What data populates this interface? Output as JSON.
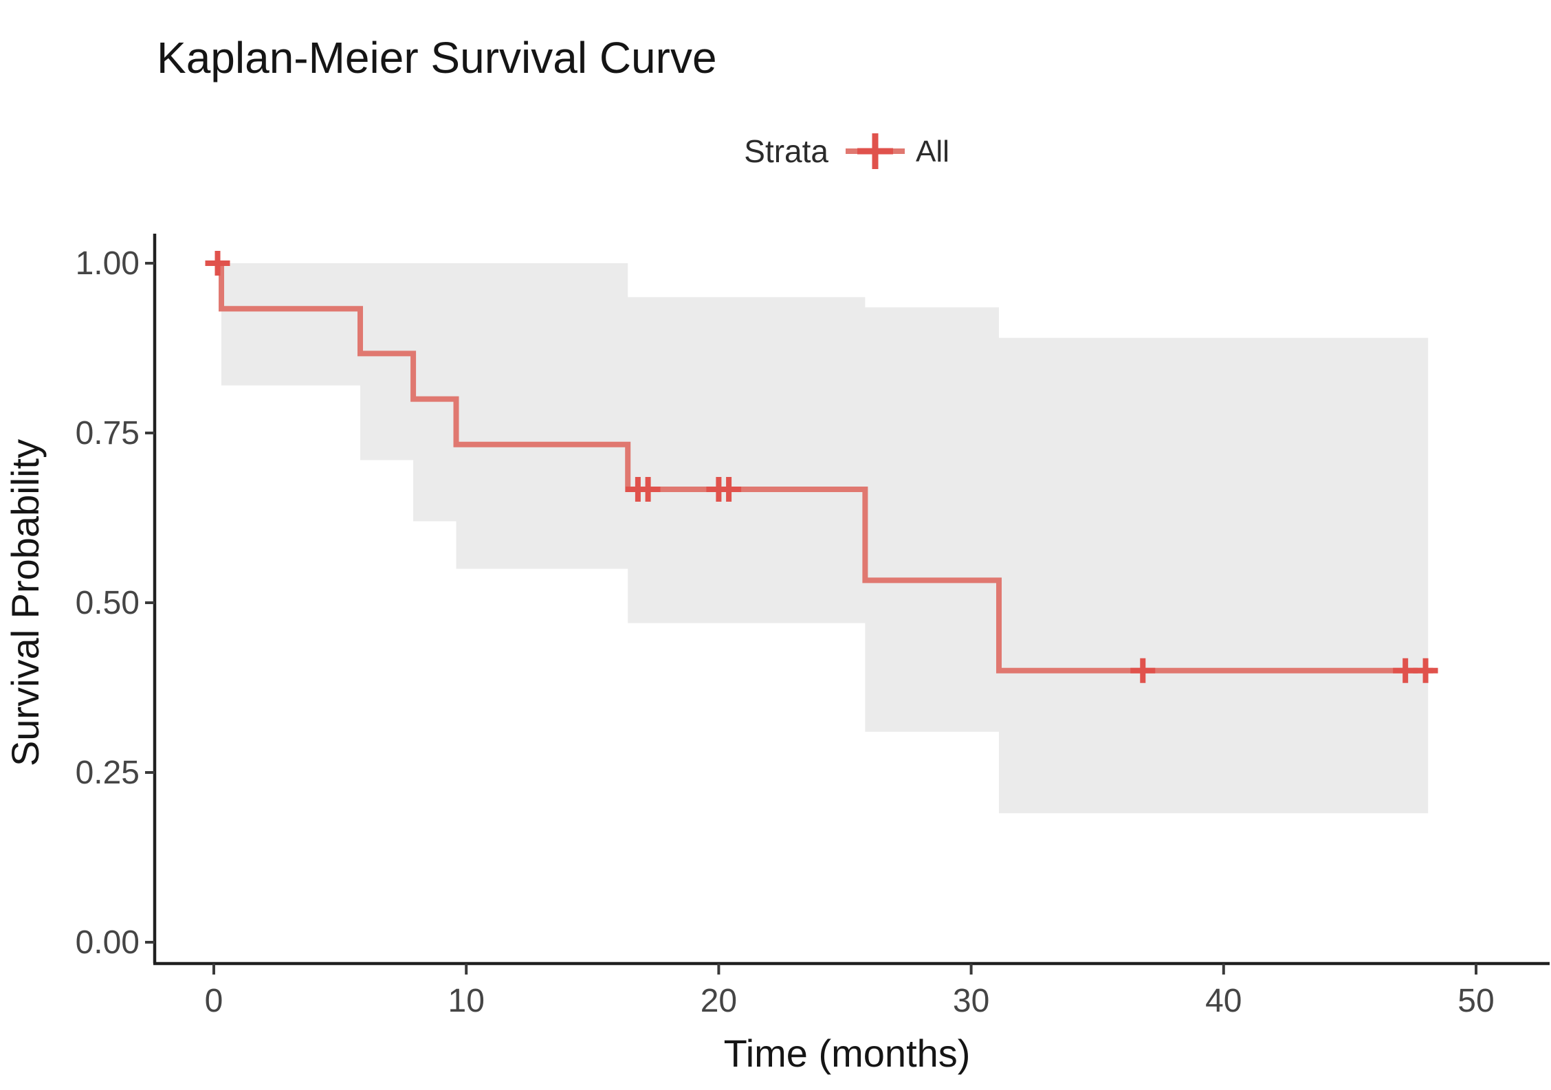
{
  "page": {
    "background": "#ffffff"
  },
  "chart_data": {
    "type": "line",
    "subtype": "kaplan-meier-step-curve",
    "title": "Kaplan-Meier Survival Curve",
    "xlabel": "Time (months)",
    "ylabel": "Survival Probability",
    "legend": {
      "label": "Strata",
      "position": "top",
      "series": [
        {
          "name": "All",
          "color": "#E07870"
        }
      ]
    },
    "x_ticks": [
      "0",
      "10",
      "20",
      "30",
      "40",
      "50"
    ],
    "y_ticks": [
      "1.00",
      "0.75",
      "0.50",
      "0.25",
      "0.00"
    ],
    "xlim": [
      0,
      52
    ],
    "ylim": [
      0,
      1.0
    ],
    "grid": "off",
    "km_steps": [
      {
        "t": 0,
        "s": 1.0
      },
      {
        "t": 0.3,
        "s": 0.933
      },
      {
        "t": 5.8,
        "s": 0.867
      },
      {
        "t": 7.9,
        "s": 0.8
      },
      {
        "t": 9.6,
        "s": 0.733
      },
      {
        "t": 16.4,
        "s": 0.667
      },
      {
        "t": 25.8,
        "s": 0.533
      },
      {
        "t": 31.1,
        "s": 0.4
      }
    ],
    "end_time": 48.3,
    "censor_marks": [
      {
        "t": 0.15,
        "s": 1.0
      },
      {
        "t": 16.8,
        "s": 0.667
      },
      {
        "t": 17.2,
        "s": 0.667
      },
      {
        "t": 20.0,
        "s": 0.667
      },
      {
        "t": 20.4,
        "s": 0.667
      },
      {
        "t": 36.8,
        "s": 0.4
      },
      {
        "t": 47.2,
        "s": 0.4
      },
      {
        "t": 48.0,
        "s": 0.4
      }
    ],
    "confidence_band": {
      "end_time": 48.1,
      "upper": [
        {
          "t": 0.3,
          "v": 1.0
        },
        {
          "t": 16.4,
          "v": 0.95
        },
        {
          "t": 25.8,
          "v": 0.935
        },
        {
          "t": 31.1,
          "v": 0.89
        }
      ],
      "lower": [
        {
          "t": 0.3,
          "v": 0.82
        },
        {
          "t": 5.8,
          "v": 0.71
        },
        {
          "t": 7.9,
          "v": 0.62
        },
        {
          "t": 9.6,
          "v": 0.55
        },
        {
          "t": 16.4,
          "v": 0.47
        },
        {
          "t": 25.8,
          "v": 0.31
        },
        {
          "t": 31.1,
          "v": 0.19
        }
      ]
    },
    "colors": {
      "line": "#E07870",
      "censor": "#E0524C",
      "band": "#EBEBEB",
      "axis": "#202020",
      "tick_text": "#454545",
      "text": "#151515"
    }
  }
}
